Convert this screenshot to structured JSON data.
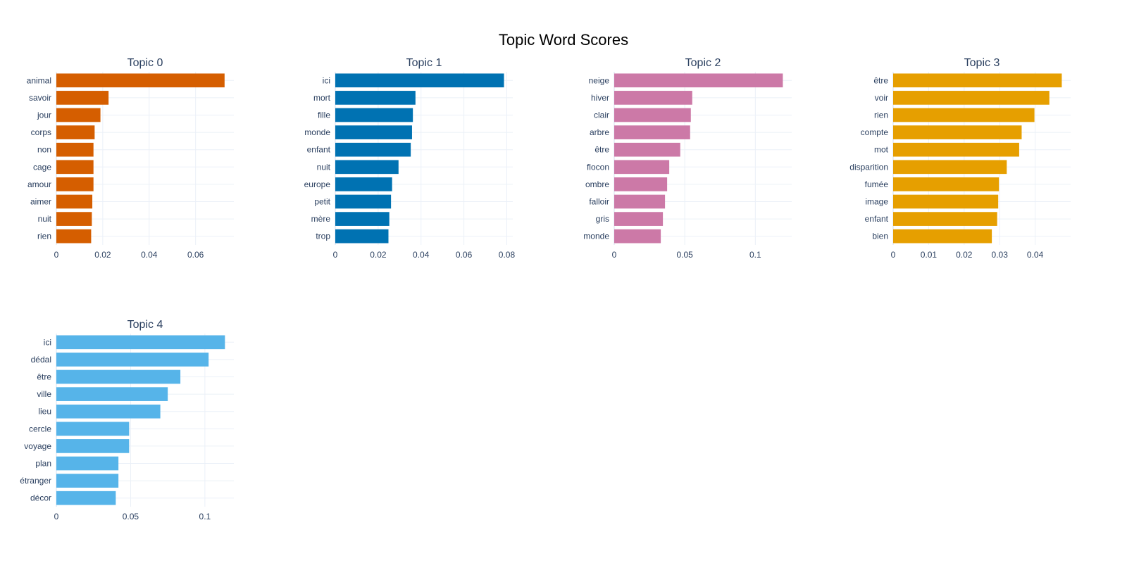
{
  "title": "Topic Word Scores",
  "chart_data": [
    {
      "type": "bar",
      "orientation": "horizontal",
      "title": "Topic 0",
      "color": "#D55E00",
      "categories": [
        "animal",
        "savoir",
        "jour",
        "corps",
        "non",
        "cage",
        "amour",
        "aimer",
        "nuit",
        "rien"
      ],
      "values": [
        0.0725,
        0.0225,
        0.019,
        0.0165,
        0.016,
        0.016,
        0.016,
        0.0155,
        0.0153,
        0.015
      ],
      "xlim": [
        0,
        0.0765
      ],
      "xticks": [
        0,
        0.02,
        0.04,
        0.06
      ],
      "xtick_labels": [
        "0",
        "0.02",
        "0.04",
        "0.06"
      ],
      "grid": true
    },
    {
      "type": "bar",
      "orientation": "horizontal",
      "title": "Topic 1",
      "color": "#0072B2",
      "categories": [
        "ici",
        "mort",
        "fille",
        "monde",
        "enfant",
        "nuit",
        "europe",
        "petit",
        "mère",
        "trop"
      ],
      "values": [
        0.0787,
        0.0374,
        0.0362,
        0.0358,
        0.0352,
        0.0295,
        0.0265,
        0.026,
        0.0252,
        0.0248
      ],
      "xlim": [
        0,
        0.0828
      ],
      "xticks": [
        0,
        0.02,
        0.04,
        0.06,
        0.08
      ],
      "xtick_labels": [
        "0",
        "0.02",
        "0.04",
        "0.06",
        "0.08"
      ],
      "grid": true
    },
    {
      "type": "bar",
      "orientation": "horizontal",
      "title": "Topic 2",
      "color": "#CC79A7",
      "categories": [
        "neige",
        "hiver",
        "clair",
        "arbre",
        "être",
        "flocon",
        "ombre",
        "falloir",
        "gris",
        "monde"
      ],
      "values": [
        0.1195,
        0.0553,
        0.0543,
        0.0538,
        0.0468,
        0.039,
        0.0375,
        0.036,
        0.0345,
        0.033
      ],
      "xlim": [
        0,
        0.1258
      ],
      "xticks": [
        0,
        0.05,
        0.1
      ],
      "xtick_labels": [
        "0",
        "0.05",
        "0.1"
      ],
      "grid": true
    },
    {
      "type": "bar",
      "orientation": "horizontal",
      "title": "Topic 3",
      "color": "#E69F00",
      "categories": [
        "être",
        "voir",
        "rien",
        "compte",
        "mot",
        "disparition",
        "fumée",
        "image",
        "enfant",
        "bien"
      ],
      "values": [
        0.0475,
        0.044,
        0.0398,
        0.0362,
        0.0355,
        0.032,
        0.0298,
        0.0296,
        0.0293,
        0.0278
      ],
      "xlim": [
        0,
        0.05
      ],
      "xticks": [
        0,
        0.01,
        0.02,
        0.03,
        0.04
      ],
      "xtick_labels": [
        "0",
        "0.01",
        "0.02",
        "0.03",
        "0.04"
      ],
      "grid": true
    },
    {
      "type": "bar",
      "orientation": "horizontal",
      "title": "Topic 4",
      "color": "#56B4E9",
      "categories": [
        "ici",
        "dédal",
        "être",
        "ville",
        "lieu",
        "cercle",
        "voyage",
        "plan",
        "étranger",
        "décor"
      ],
      "values": [
        0.1135,
        0.1025,
        0.0835,
        0.075,
        0.07,
        0.049,
        0.049,
        0.0418,
        0.0418,
        0.04
      ],
      "xlim": [
        0,
        0.1195
      ],
      "xticks": [
        0,
        0.05,
        0.1
      ],
      "xtick_labels": [
        "0",
        "0.05",
        "0.1"
      ],
      "grid": true
    }
  ]
}
